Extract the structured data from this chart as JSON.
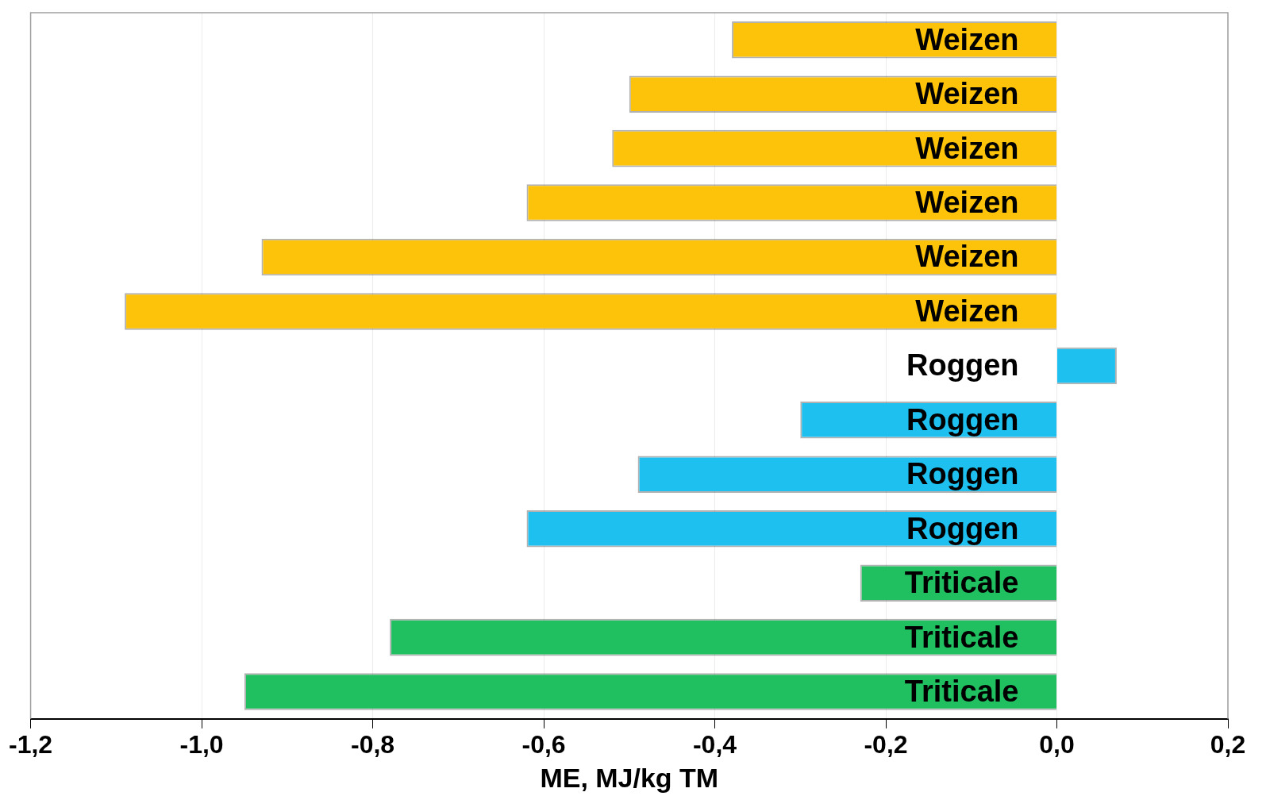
{
  "chart_data": {
    "type": "bar",
    "orientation": "horizontal",
    "xlabel": "ME, MJ/kg TM",
    "categories": [
      "Weizen",
      "Weizen",
      "Weizen",
      "Weizen",
      "Weizen",
      "Weizen",
      "Roggen",
      "Roggen",
      "Roggen",
      "Roggen",
      "Triticale",
      "Triticale",
      "Triticale"
    ],
    "values": [
      -0.38,
      -0.5,
      -0.52,
      -0.62,
      -0.93,
      -1.09,
      0.07,
      -0.3,
      -0.49,
      -0.62,
      -0.23,
      -0.78,
      -0.95
    ],
    "colors": [
      "#fcc30a",
      "#fcc30a",
      "#fcc30a",
      "#fcc30a",
      "#fcc30a",
      "#fcc30a",
      "#1ec0f0",
      "#1ec0f0",
      "#1ec0f0",
      "#1ec0f0",
      "#20c060",
      "#20c060",
      "#20c060"
    ],
    "xlim": [
      -1.2,
      0.2
    ],
    "xticks": [
      {
        "value": -1.2,
        "label": "-1,2"
      },
      {
        "value": -1.0,
        "label": "-1,0"
      },
      {
        "value": -0.8,
        "label": "-0,8"
      },
      {
        "value": -0.6,
        "label": "-0,6"
      },
      {
        "value": -0.4,
        "label": "-0,4"
      },
      {
        "value": -0.2,
        "label": "-0,2"
      },
      {
        "value": 0,
        "label": "0,0"
      },
      {
        "value": 0.2,
        "label": "0,2"
      }
    ],
    "grid": "x",
    "legend": false
  }
}
